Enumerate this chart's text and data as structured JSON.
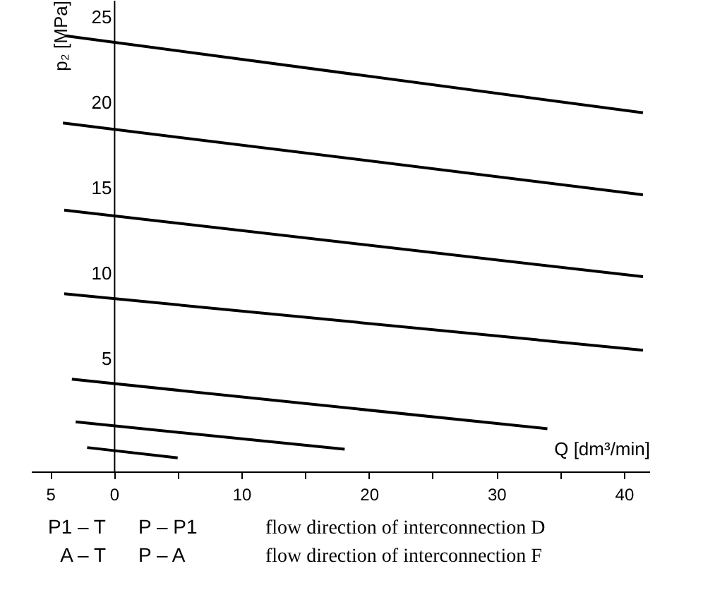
{
  "chart_data": {
    "type": "line",
    "xlabel": "Q [dm³/min]",
    "ylabel": "p₂ [MPa]",
    "xlim": [
      -6.5,
      42
    ],
    "ylim": [
      -1.6,
      26
    ],
    "xticks": [
      {
        "value": -5,
        "label": "5"
      },
      0,
      {
        "value": 5,
        "label": null
      },
      10,
      {
        "value": 15,
        "label": null
      },
      20,
      {
        "value": 25,
        "label": null
      },
      30,
      {
        "value": 35,
        "label": null
      },
      40
    ],
    "yticks": [
      5,
      10,
      15,
      20,
      25
    ],
    "grid": false,
    "marker": "none",
    "line_style": "solid",
    "series": [
      {
        "color": "#000000",
        "x": [
          -3.8,
          41.5
        ],
        "values": [
          23.9,
          19.4
        ]
      },
      {
        "color": "#000000",
        "x": [
          -4.0,
          41.5
        ],
        "values": [
          18.8,
          14.6
        ]
      },
      {
        "color": "#000000",
        "x": [
          -3.9,
          41.5
        ],
        "values": [
          13.7,
          9.8
        ]
      },
      {
        "color": "#000000",
        "x": [
          -3.9,
          41.5
        ],
        "values": [
          8.8,
          5.5
        ]
      },
      {
        "color": "#000000",
        "x": [
          -3.3,
          34.0
        ],
        "values": [
          3.8,
          0.9
        ]
      },
      {
        "color": "#000000",
        "x": [
          -3.0,
          18.1
        ],
        "values": [
          1.3,
          -0.3
        ]
      },
      {
        "color": "#000000",
        "x": [
          -2.1,
          5.0
        ],
        "values": [
          -0.2,
          -0.8
        ]
      }
    ],
    "annotations": [
      "P1 – T",
      "P – P1",
      "flow direction of interconnection D",
      "A – T",
      "P – A",
      "flow direction of interconnection F"
    ]
  }
}
